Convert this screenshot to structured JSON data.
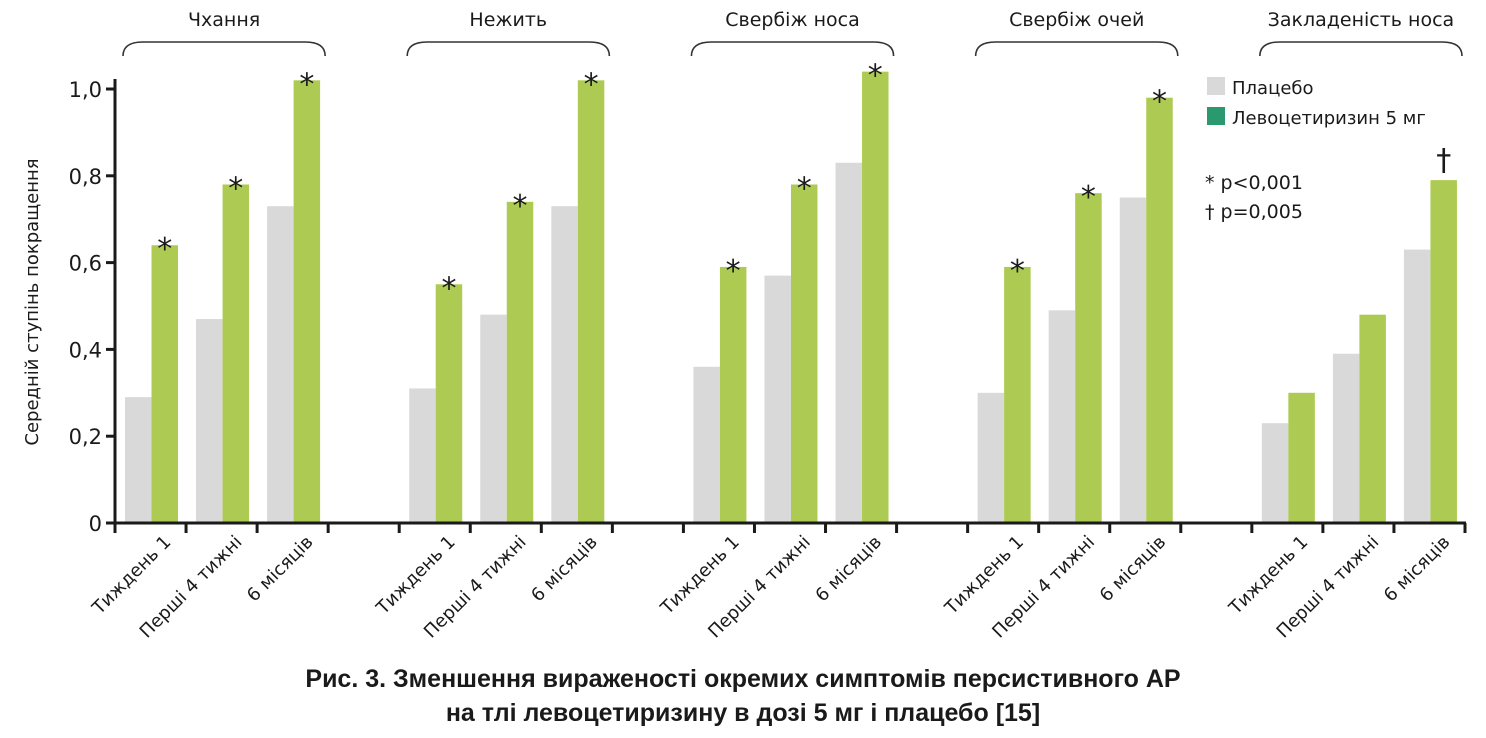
{
  "chart_data": {
    "type": "bar",
    "ylabel": "Середній ступінь покращення",
    "xlabel": "",
    "ylim": [
      0,
      1.0
    ],
    "yticks": [
      0,
      0.2,
      0.4,
      0.6,
      0.8,
      1.0
    ],
    "ytick_labels": [
      "0",
      "0,2",
      "0,4",
      "0,6",
      "0,8",
      "1,0"
    ],
    "grid": false,
    "legend_position": "top-right",
    "legend": [
      {
        "name": "Плацебо",
        "swatch_color": "#d9d9d9"
      },
      {
        "name": "Левоцетиризин 5 мг",
        "swatch_color": "#2a9a6e"
      }
    ],
    "bar_colors": {
      "placebo": "#d9d9d9",
      "levocetirizine": "#adcb52"
    },
    "notes": [
      "* p<0,001",
      "† p=0,005"
    ],
    "categories": [
      "Тиждень 1",
      "Перші 4 тижні",
      "6 місяців"
    ],
    "groups": [
      {
        "label": "Чхання",
        "series": [
          {
            "name": "Плацебо",
            "values": [
              0.29,
              0.47,
              0.73
            ]
          },
          {
            "name": "Левоцетиризин 5 мг",
            "values": [
              0.64,
              0.78,
              1.02
            ]
          }
        ],
        "significance": [
          "*",
          "*",
          "*"
        ]
      },
      {
        "label": "Нежить",
        "series": [
          {
            "name": "Плацебо",
            "values": [
              0.31,
              0.48,
              0.73
            ]
          },
          {
            "name": "Левоцетиризин 5 мг",
            "values": [
              0.55,
              0.74,
              1.02
            ]
          }
        ],
        "significance": [
          "*",
          "*",
          "*"
        ]
      },
      {
        "label": "Свербіж носа",
        "series": [
          {
            "name": "Плацебо",
            "values": [
              0.36,
              0.57,
              0.83
            ]
          },
          {
            "name": "Левоцетиризин 5 мг",
            "values": [
              0.59,
              0.78,
              1.04
            ]
          }
        ],
        "significance": [
          "*",
          "*",
          "*"
        ]
      },
      {
        "label": "Свербіж очей",
        "series": [
          {
            "name": "Плацебо",
            "values": [
              0.3,
              0.49,
              0.75
            ]
          },
          {
            "name": "Левоцетиризин 5 мг",
            "values": [
              0.59,
              0.76,
              0.98
            ]
          }
        ],
        "significance": [
          "*",
          "*",
          "*"
        ]
      },
      {
        "label": "Закладеність носа",
        "series": [
          {
            "name": "Плацебо",
            "values": [
              0.23,
              0.39,
              0.63
            ]
          },
          {
            "name": "Левоцетиризин 5 мг",
            "values": [
              0.3,
              0.48,
              0.79
            ]
          }
        ],
        "significance": [
          "",
          "",
          "†"
        ]
      }
    ]
  },
  "caption": {
    "line1": "Рис. 3. Зменшення вираженості окремих симптомів персистивного АР",
    "line2": "на тлі левоцетиризину в дозі 5 мг і плацебо [15]"
  }
}
